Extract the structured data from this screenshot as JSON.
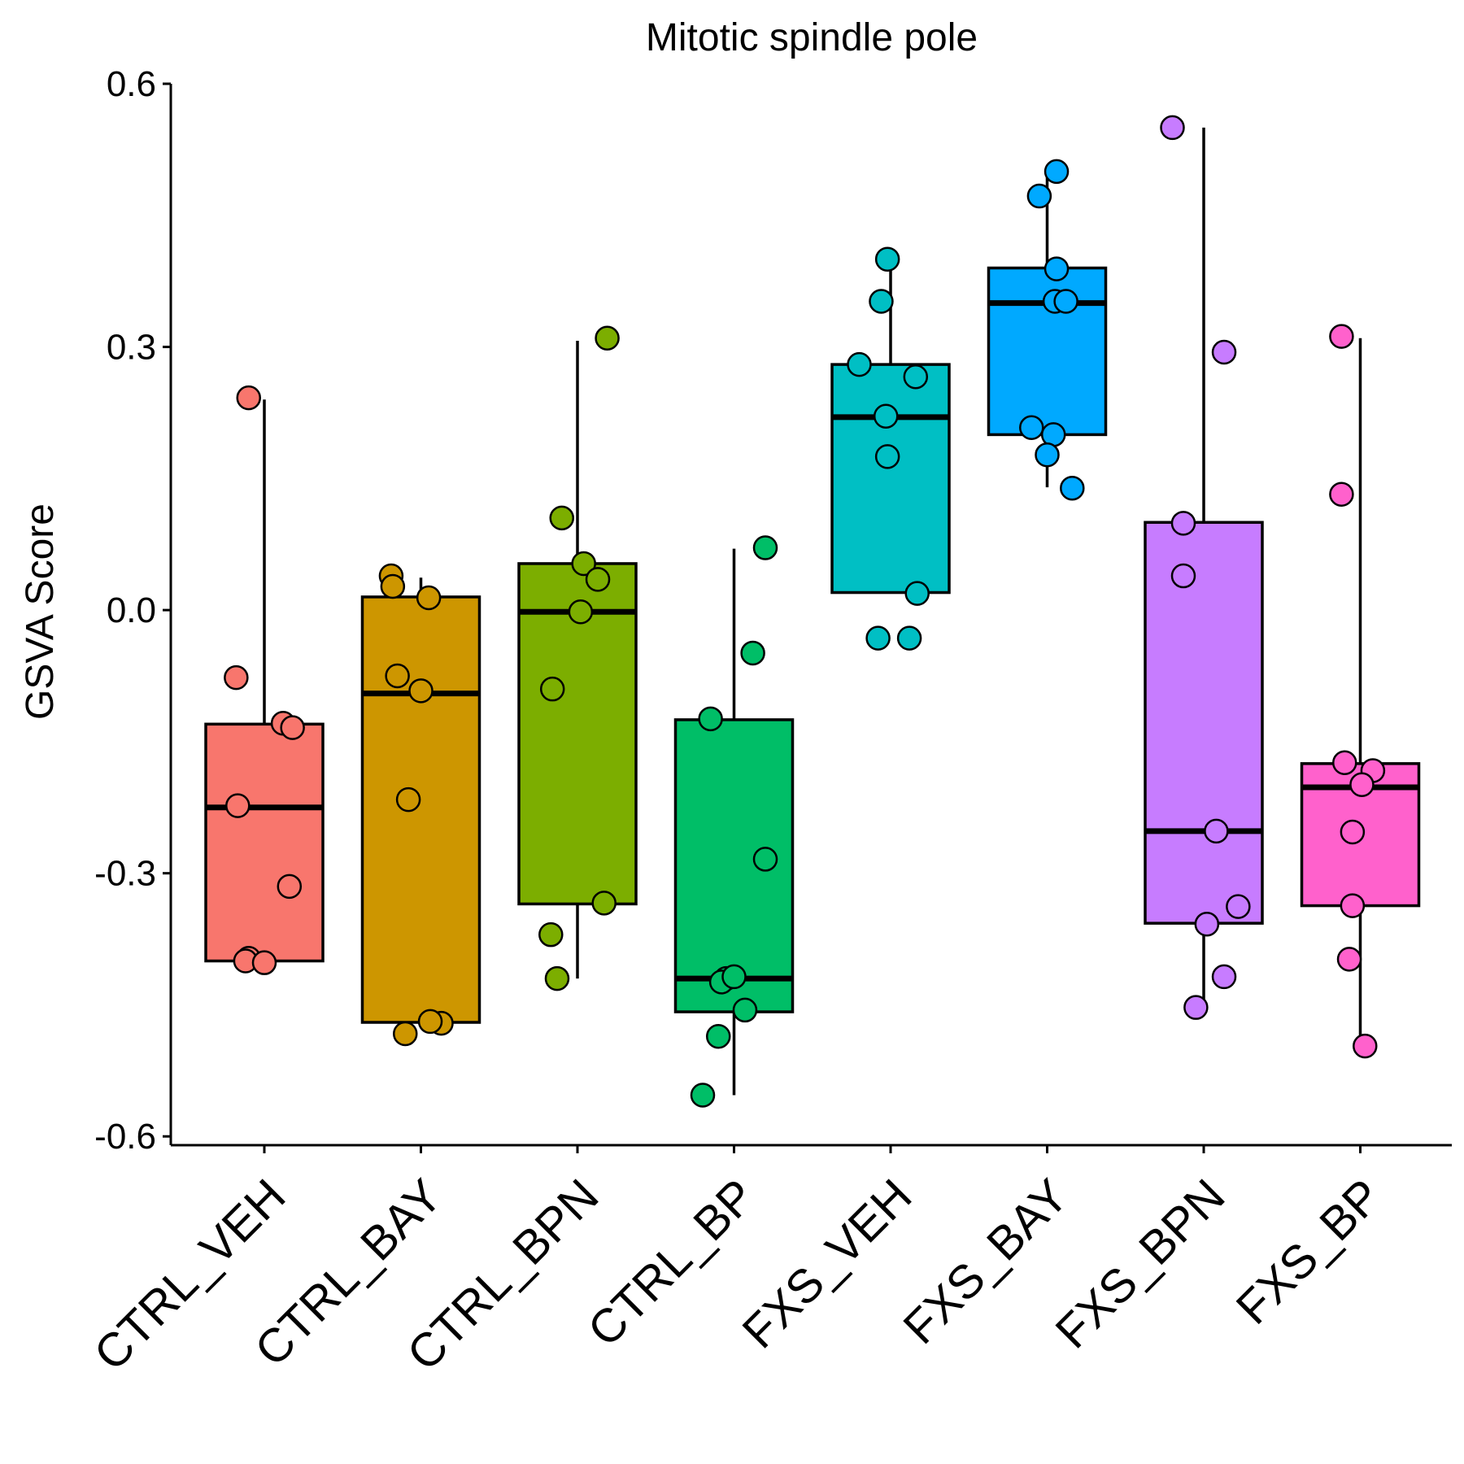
{
  "chart_data": {
    "type": "box",
    "title": "Mitotic spindle pole",
    "xlabel": "",
    "ylabel": "GSVA Score",
    "ylim": [
      -0.61,
      0.6
    ],
    "yticks": [
      -0.6,
      -0.3,
      0.0,
      0.3,
      0.6
    ],
    "ytick_labels": [
      "-0.6",
      "-0.3",
      "0.0",
      "0.3",
      "0.6"
    ],
    "grid": false,
    "legend": "none",
    "categories": [
      "CTRL_VEH",
      "CTRL_BAY",
      "CTRL_BPN",
      "CTRL_BP",
      "FXS_VEH",
      "FXS_BAY",
      "FXS_BPN",
      "FXS_BP"
    ],
    "colors": [
      "#F8766D",
      "#CD9600",
      "#7CAE00",
      "#00BE67",
      "#00BFC4",
      "#00A9FF",
      "#C77CFF",
      "#FF61CC"
    ],
    "boxes": [
      {
        "name": "CTRL_VEH",
        "whisker_low": -0.4,
        "q1": -0.4,
        "median": -0.225,
        "q3": -0.13,
        "whisker_high": 0.24
      },
      {
        "name": "CTRL_BAY",
        "whisker_low": -0.47,
        "q1": -0.47,
        "median": -0.095,
        "q3": 0.015,
        "whisker_high": 0.037
      },
      {
        "name": "CTRL_BPN",
        "whisker_low": -0.42,
        "q1": -0.335,
        "median": -0.002,
        "q3": 0.053,
        "whisker_high": 0.307
      },
      {
        "name": "CTRL_BP",
        "whisker_low": -0.553,
        "q1": -0.458,
        "median": -0.42,
        "q3": -0.125,
        "whisker_high": 0.07
      },
      {
        "name": "FXS_VEH",
        "whisker_low": 0.02,
        "q1": 0.02,
        "median": 0.22,
        "q3": 0.28,
        "whisker_high": 0.4
      },
      {
        "name": "FXS_BAY",
        "whisker_low": 0.14,
        "q1": 0.2,
        "median": 0.35,
        "q3": 0.39,
        "whisker_high": 0.5
      },
      {
        "name": "FXS_BPN",
        "whisker_low": -0.453,
        "q1": -0.357,
        "median": -0.252,
        "q3": 0.1,
        "whisker_high": 0.55
      },
      {
        "name": "FXS_BP",
        "whisker_low": -0.497,
        "q1": -0.337,
        "median": -0.202,
        "q3": -0.175,
        "whisker_high": 0.31
      }
    ],
    "points": [
      {
        "x": [
          -0.1,
          -0.18,
          0.12,
          0.18,
          -0.17,
          0.16,
          -0.1,
          -0.12,
          0.0
        ],
        "y": [
          0.242,
          -0.077,
          -0.129,
          -0.134,
          -0.223,
          -0.315,
          -0.397,
          -0.4,
          -0.402
        ],
        "group": "CTRL_VEH"
      },
      {
        "x": [
          -0.19,
          -0.18,
          0.05,
          -0.15,
          0.0,
          -0.08,
          0.13,
          0.06,
          -0.1
        ],
        "y": [
          0.039,
          0.027,
          0.014,
          -0.075,
          -0.092,
          -0.216,
          -0.471,
          -0.469,
          -0.483
        ]
      },
      {
        "x": [
          0.19,
          -0.1,
          0.04,
          0.13,
          0.02,
          -0.16,
          0.17,
          -0.17,
          -0.13
        ],
        "y": [
          0.31,
          0.105,
          0.053,
          0.035,
          -0.002,
          -0.09,
          -0.334,
          -0.37,
          -0.42
        ]
      },
      {
        "x": [
          0.2,
          0.12,
          -0.15,
          0.2,
          -0.05,
          -0.08,
          0.0,
          0.07,
          -0.1,
          -0.2
        ],
        "y": [
          0.071,
          -0.049,
          -0.124,
          -0.284,
          -0.42,
          -0.424,
          -0.418,
          -0.456,
          -0.486,
          -0.553
        ]
      },
      {
        "x": [
          -0.02,
          -0.06,
          -0.2,
          0.16,
          -0.03,
          -0.02,
          0.17,
          -0.08,
          0.12
        ],
        "y": [
          0.4,
          0.352,
          0.28,
          0.266,
          0.221,
          0.175,
          0.019,
          -0.032,
          -0.032
        ]
      },
      {
        "x": [
          0.06,
          -0.05,
          0.06,
          0.05,
          0.12,
          -0.1,
          0.04,
          0.0,
          0.16
        ],
        "y": [
          0.5,
          0.472,
          0.389,
          0.352,
          0.352,
          0.208,
          0.2,
          0.177,
          0.139
        ]
      },
      {
        "x": [
          -0.2,
          0.13,
          -0.13,
          -0.13,
          0.08,
          0.22,
          0.02,
          0.13,
          -0.05
        ],
        "y": [
          0.55,
          0.294,
          0.099,
          0.039,
          -0.252,
          -0.338,
          -0.358,
          -0.418,
          -0.453
        ]
      },
      {
        "x": [
          -0.12,
          -0.12,
          -0.1,
          0.08,
          0.01,
          -0.05,
          -0.05,
          -0.07,
          0.03
        ],
        "y": [
          0.312,
          0.132,
          -0.174,
          -0.183,
          -0.199,
          -0.253,
          -0.337,
          -0.398,
          -0.497
        ]
      }
    ]
  }
}
